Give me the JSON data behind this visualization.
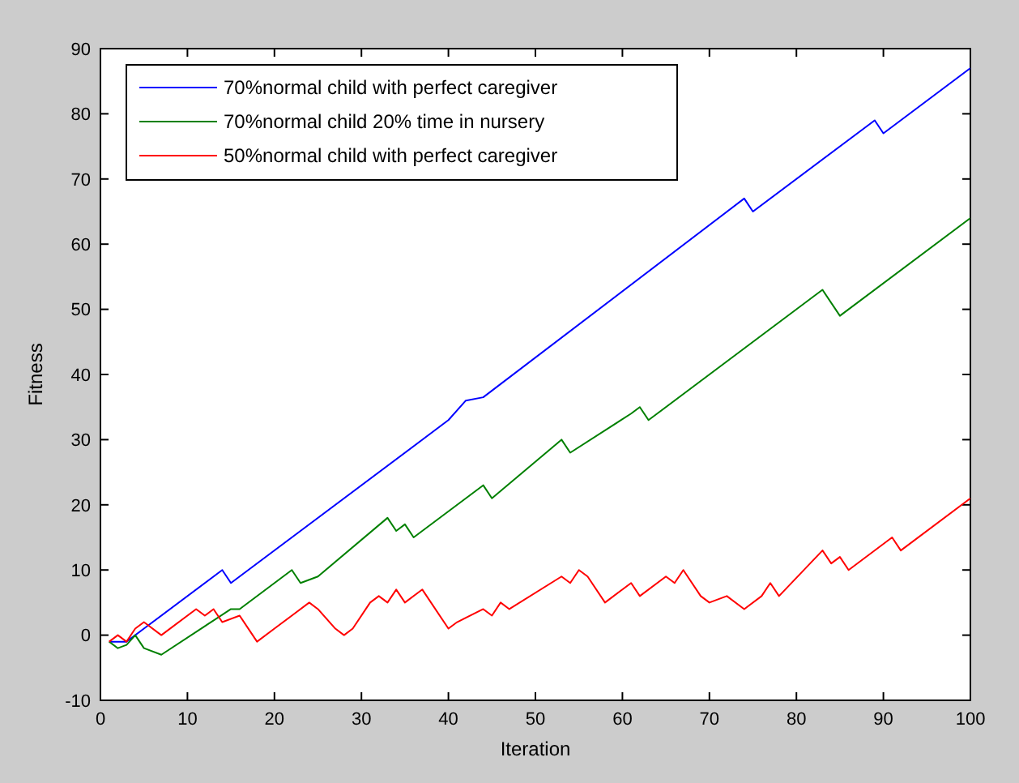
{
  "chart_data": {
    "type": "line",
    "xlabel": "Iteration",
    "ylabel": "Fitness",
    "xlim": [
      0,
      100
    ],
    "ylim": [
      -10,
      90
    ],
    "xticks": [
      0,
      10,
      20,
      30,
      40,
      50,
      60,
      70,
      80,
      90,
      100
    ],
    "yticks": [
      -10,
      0,
      10,
      20,
      30,
      40,
      50,
      60,
      70,
      80,
      90
    ],
    "grid": false,
    "legend": "top left",
    "marker": "none",
    "line_style": "solid",
    "series": [
      {
        "name": "70%normal child with perfect caregiver",
        "color": "#0000ff",
        "x": [
          1,
          3,
          5,
          14,
          15,
          40,
          42,
          44,
          74,
          75,
          89,
          90,
          100
        ],
        "values": [
          -1,
          -1,
          1,
          10,
          8,
          33,
          36,
          36.5,
          67,
          65,
          79,
          77,
          87
        ]
      },
      {
        "name": "70%normal child 20% time in nursery",
        "color": "#008000",
        "x": [
          1,
          2,
          3,
          4,
          5,
          7,
          15,
          16,
          22,
          23,
          25,
          33,
          34,
          35,
          36,
          43,
          44,
          45,
          53,
          54,
          61,
          62,
          63,
          64,
          82,
          83,
          85,
          100
        ],
        "values": [
          -1,
          -2,
          -1.5,
          0,
          -2,
          -3,
          4,
          4,
          10,
          8,
          9,
          18,
          16,
          17,
          15,
          22,
          23,
          21,
          30,
          28,
          34,
          35,
          33,
          34,
          52,
          53,
          49,
          64
        ]
      },
      {
        "name": "50%normal child with perfect caregiver",
        "color": "#ff0000",
        "x": [
          1,
          2,
          3,
          4,
          5,
          7,
          11,
          12,
          13,
          14,
          16,
          18,
          20,
          22,
          24,
          25,
          27,
          28,
          29,
          31,
          32,
          33,
          34,
          35,
          37,
          40,
          41,
          44,
          45,
          46,
          47,
          53,
          54,
          55,
          56,
          58,
          61,
          62,
          65,
          66,
          67,
          69,
          70,
          72,
          74,
          76,
          77,
          78,
          83,
          84,
          85,
          86,
          91,
          92,
          100
        ],
        "values": [
          -1,
          0,
          -1,
          1,
          2,
          0,
          4,
          3,
          4,
          2,
          3,
          -1,
          1,
          3,
          5,
          4,
          1,
          0,
          1,
          5,
          6,
          5,
          7,
          5,
          7,
          1,
          2,
          4,
          3,
          5,
          4,
          9,
          8,
          10,
          9,
          5,
          8,
          6,
          9,
          8,
          10,
          6,
          5,
          6,
          4,
          6,
          8,
          6,
          13,
          11,
          12,
          10,
          15,
          13,
          21
        ]
      }
    ]
  }
}
